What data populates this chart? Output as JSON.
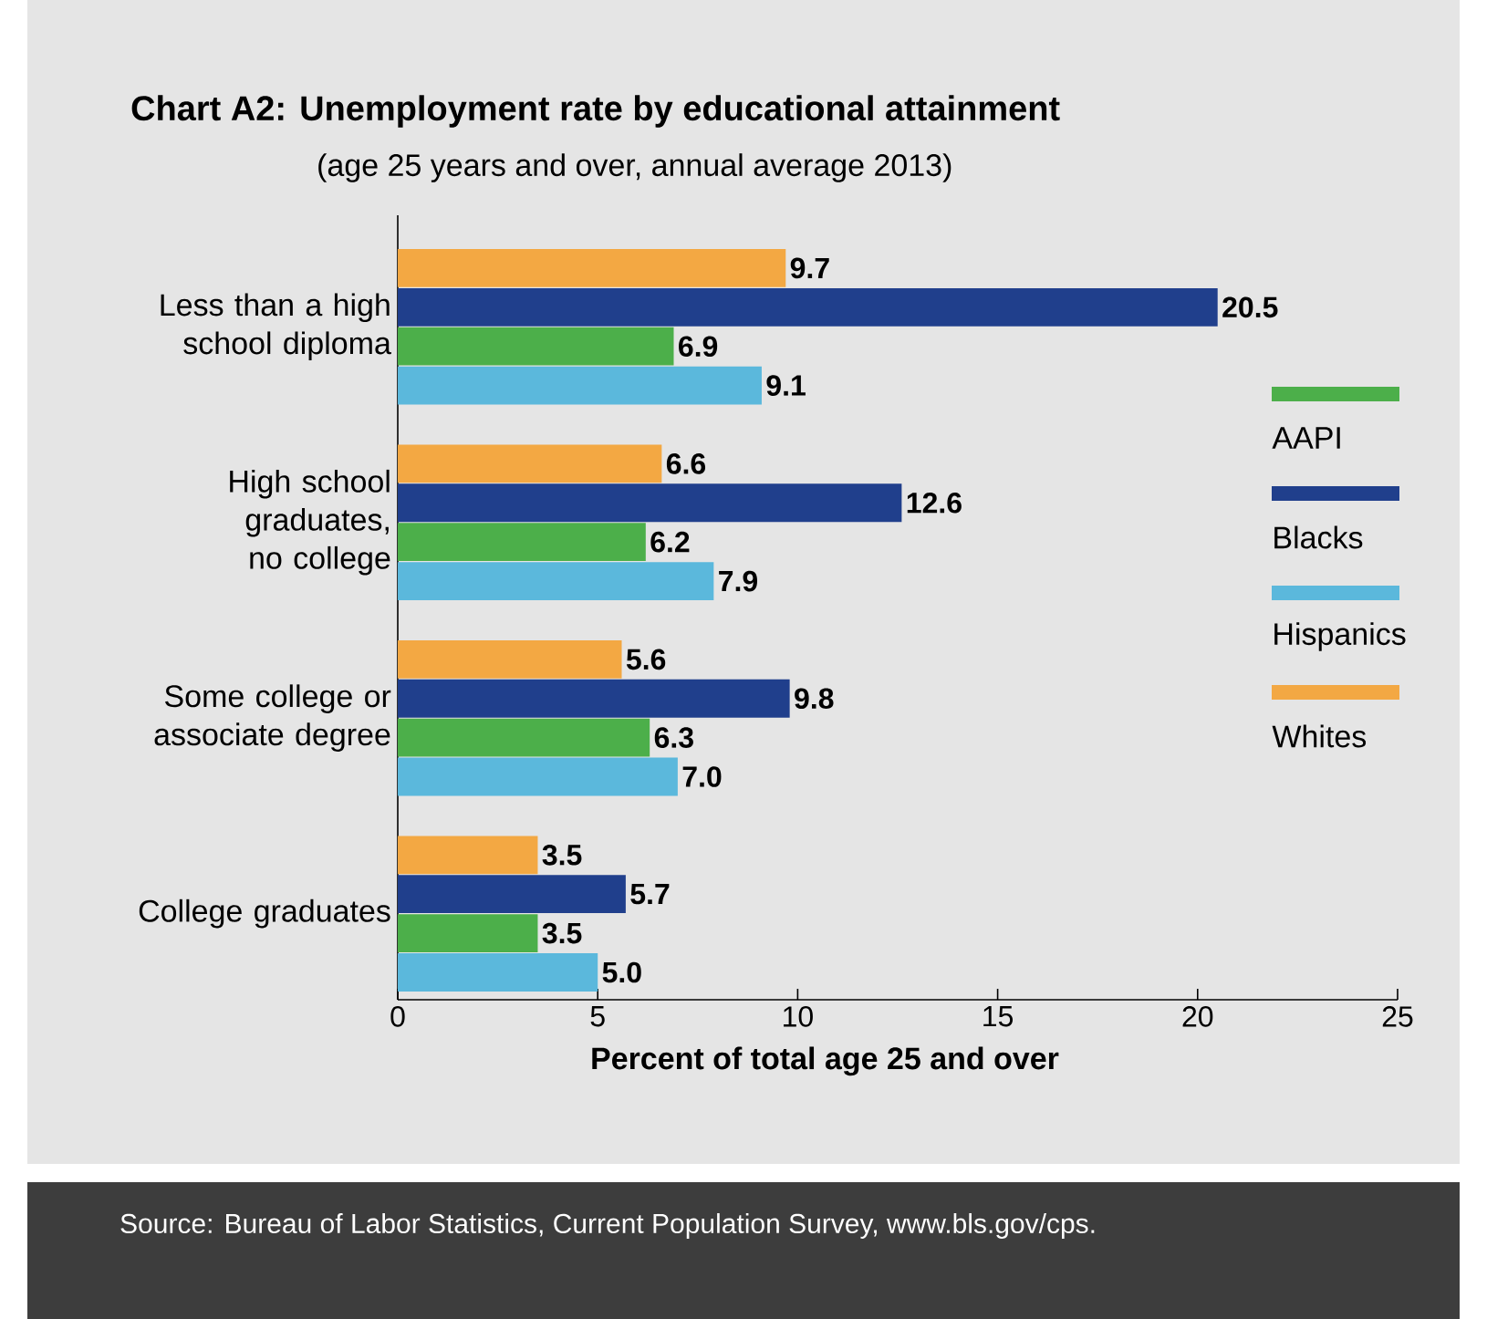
{
  "chart_data": {
    "type": "bar",
    "orientation": "horizontal",
    "title": "Chart A2: Unemployment rate by educational attainment",
    "subtitle": "(age 25 years and over, annual average 2013)",
    "xlabel": "Percent of total age 25 and over",
    "categories": [
      "Less than a high school diploma",
      "High school graduates, no college",
      "Some college or associate degree",
      "College graduates"
    ],
    "series": [
      {
        "name": "AAPI",
        "color": "#4caf4a",
        "values": [
          6.9,
          6.2,
          6.3,
          3.5
        ],
        "value_labels": [
          "6.9",
          "6.2",
          "6.3",
          "3.5"
        ]
      },
      {
        "name": "Blacks",
        "color": "#203f8c",
        "values": [
          20.5,
          12.6,
          9.8,
          5.7
        ],
        "value_labels": [
          "20.5",
          "12.6",
          "9.8",
          "5.7"
        ]
      },
      {
        "name": "Hispanics",
        "color": "#5bb8dc",
        "values": [
          9.1,
          7.9,
          7.0,
          5.0
        ],
        "value_labels": [
          "9.1",
          "7.9",
          "7.0",
          "5.0"
        ]
      },
      {
        "name": "Whites",
        "color": "#f3a843",
        "values": [
          9.7,
          6.6,
          5.6,
          3.5
        ],
        "value_labels": [
          "9.7",
          "6.6",
          "5.6",
          "3.5"
        ]
      }
    ],
    "xlim": [
      0,
      25
    ],
    "xticks": [
      0,
      5,
      10,
      15,
      20,
      25
    ],
    "legend": "right",
    "grid": false,
    "annotations": [
      "Source: Bureau of Labor Statistics, Current Population Survey, www.bls.gov/cps."
    ]
  }
}
